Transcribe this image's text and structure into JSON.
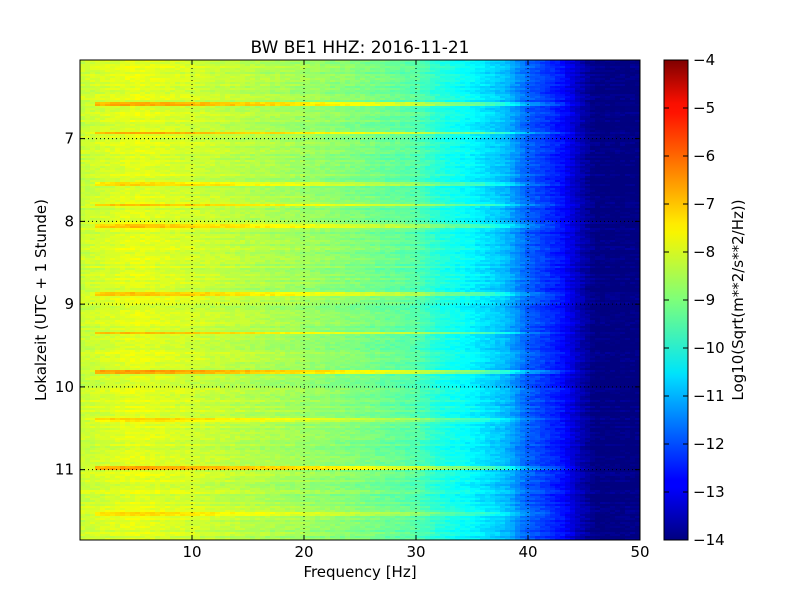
{
  "chart_data": {
    "type": "heatmap",
    "title": "BW BE1 HHZ: 2016-11-21",
    "xlabel": "Frequency [Hz]",
    "ylabel": "Lokalzeit (UTC + 1 Stunde)",
    "xlim": [
      0,
      50
    ],
    "ylim": [
      11.85,
      6.05
    ],
    "y_inverted": true,
    "x_ticks": [
      {
        "value": 10,
        "label": "10"
      },
      {
        "value": 20,
        "label": "20"
      },
      {
        "value": 30,
        "label": "30"
      },
      {
        "value": 40,
        "label": "40"
      },
      {
        "value": 50,
        "label": "50"
      }
    ],
    "y_ticks": [
      {
        "value": 7,
        "label": "7"
      },
      {
        "value": 8,
        "label": "8"
      },
      {
        "value": 9,
        "label": "9"
      },
      {
        "value": 10,
        "label": "10"
      },
      {
        "value": 11,
        "label": "11"
      }
    ],
    "grid": true,
    "colormap": "jet",
    "colorbar": {
      "label": "Log10(Sqrt(m**2/s**2/Hz))",
      "range": [
        -14,
        -4
      ],
      "ticks": [
        {
          "value": -4,
          "label": "−4"
        },
        {
          "value": -5,
          "label": "−5"
        },
        {
          "value": -6,
          "label": "−6"
        },
        {
          "value": -7,
          "label": "−7"
        },
        {
          "value": -8,
          "label": "−8"
        },
        {
          "value": -9,
          "label": "−9"
        },
        {
          "value": -10,
          "label": "−10"
        },
        {
          "value": -11,
          "label": "−11"
        },
        {
          "value": -12,
          "label": "−12"
        },
        {
          "value": -13,
          "label": "−13"
        },
        {
          "value": -14,
          "label": "−14"
        }
      ]
    },
    "frequency_profile": [
      {
        "freq": 0,
        "value": -8.3
      },
      {
        "freq": 5,
        "value": -8.0
      },
      {
        "freq": 10,
        "value": -8.2
      },
      {
        "freq": 20,
        "value": -8.7
      },
      {
        "freq": 25,
        "value": -9.0
      },
      {
        "freq": 30,
        "value": -9.4
      },
      {
        "freq": 32,
        "value": -9.9
      },
      {
        "freq": 35,
        "value": -10.3
      },
      {
        "freq": 38,
        "value": -10.9
      },
      {
        "freq": 40,
        "value": -11.8
      },
      {
        "freq": 43,
        "value": -12.6
      },
      {
        "freq": 44.5,
        "value": -13.4
      },
      {
        "freq": 46,
        "value": -14.0
      },
      {
        "freq": 50,
        "value": -14.0
      }
    ],
    "bands": [
      {
        "time": 6.58,
        "boost": 1.1,
        "fmax": 46
      },
      {
        "time": 6.93,
        "boost": 1.0,
        "fmax": 46
      },
      {
        "time": 7.55,
        "boost": 0.7,
        "fmax": 44
      },
      {
        "time": 7.8,
        "boost": 0.9,
        "fmax": 45
      },
      {
        "time": 8.05,
        "boost": 0.9,
        "fmax": 45
      },
      {
        "time": 8.88,
        "boost": 0.8,
        "fmax": 44
      },
      {
        "time": 9.35,
        "boost": 0.9,
        "fmax": 45
      },
      {
        "time": 9.82,
        "boost": 1.2,
        "fmax": 46
      },
      {
        "time": 10.4,
        "boost": 0.6,
        "fmax": 43
      },
      {
        "time": 10.98,
        "boost": 1.2,
        "fmax": 46
      },
      {
        "time": 11.53,
        "boost": 0.6,
        "fmax": 44
      }
    ]
  }
}
